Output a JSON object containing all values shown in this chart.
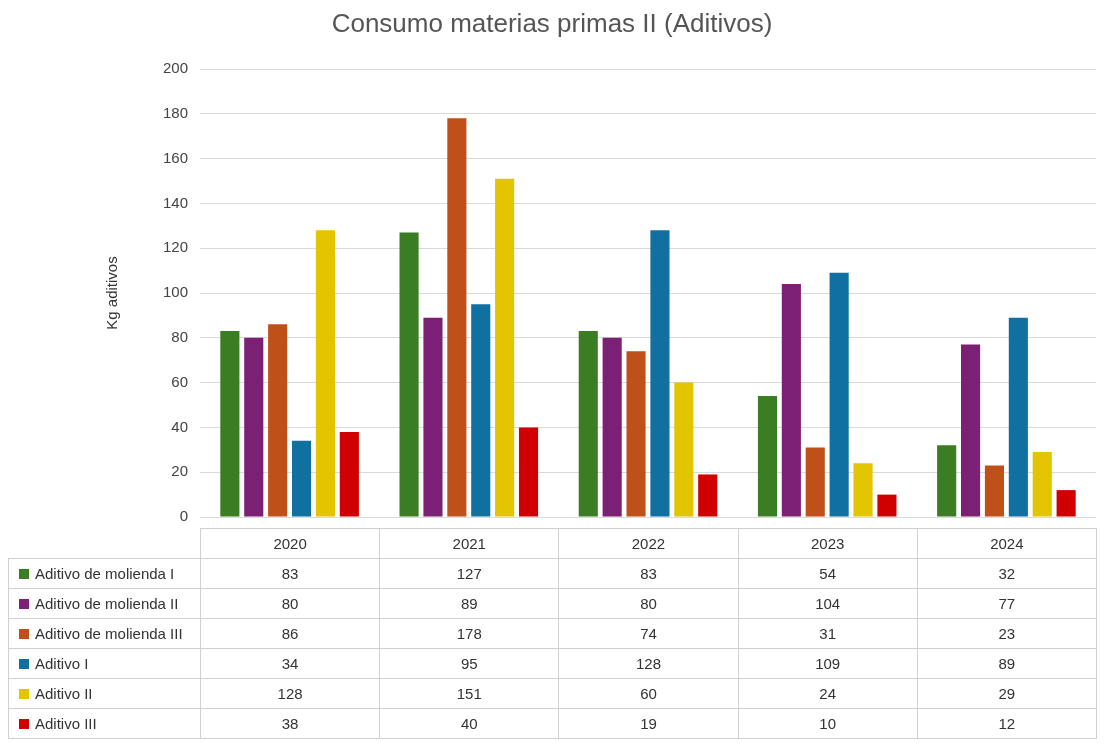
{
  "chart_data": {
    "type": "bar",
    "title": "Consumo materias primas II (Aditivos)",
    "ylabel": "Kg aditivos",
    "categories": [
      "2020",
      "2021",
      "2022",
      "2023",
      "2024"
    ],
    "series": [
      {
        "name": "Aditivo de molienda I",
        "color": "#3a7d22",
        "values": [
          83,
          127,
          83,
          54,
          32
        ]
      },
      {
        "name": "Aditivo de molienda II",
        "color": "#7b2075",
        "values": [
          80,
          89,
          80,
          104,
          77
        ]
      },
      {
        "name": "Aditivo de molienda III",
        "color": "#c0501a",
        "values": [
          86,
          178,
          74,
          31,
          23
        ]
      },
      {
        "name": "Aditivo I",
        "color": "#1070a0",
        "values": [
          34,
          95,
          128,
          109,
          89
        ]
      },
      {
        "name": "Aditivo II",
        "color": "#e3c400",
        "values": [
          128,
          151,
          60,
          24,
          29
        ]
      },
      {
        "name": "Aditivo III",
        "color": "#d00000",
        "values": [
          38,
          40,
          19,
          10,
          12
        ]
      }
    ],
    "ylim": [
      0,
      200
    ],
    "yticks": [
      0,
      20,
      40,
      60,
      80,
      100,
      120,
      140,
      160,
      180,
      200
    ],
    "grid": "y",
    "legend": "bottom",
    "data_labels": true
  }
}
